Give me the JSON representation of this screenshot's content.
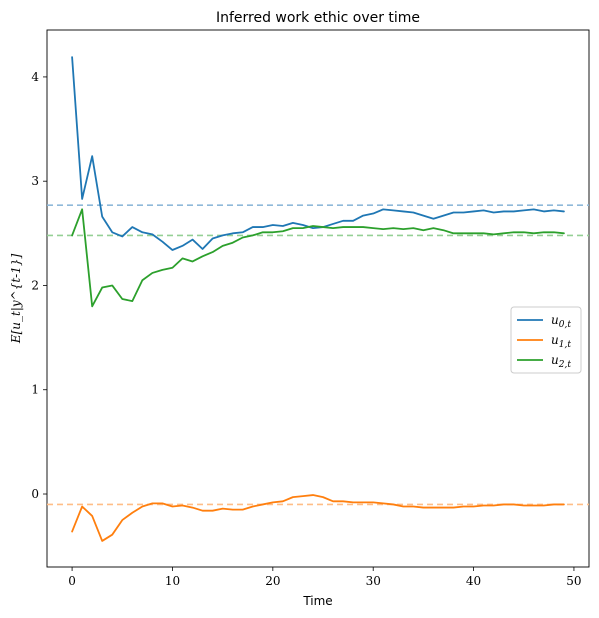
{
  "chart_data": {
    "type": "line",
    "title": "Inferred work ethic over time",
    "xlabel": "Time",
    "ylabel": "E[u_t|y^{t-1}]",
    "xlim": [
      -2.5,
      51.5
    ],
    "ylim": [
      -0.7,
      4.45
    ],
    "xticks": [
      0,
      10,
      20,
      30,
      40,
      50
    ],
    "yticks": [
      0,
      1,
      2,
      3,
      4
    ],
    "legend_position": "center-right",
    "grid": false,
    "x": [
      0,
      1,
      2,
      3,
      4,
      5,
      6,
      7,
      8,
      9,
      10,
      11,
      12,
      13,
      14,
      15,
      16,
      17,
      18,
      19,
      20,
      21,
      22,
      23,
      24,
      25,
      26,
      27,
      28,
      29,
      30,
      31,
      32,
      33,
      34,
      35,
      36,
      37,
      38,
      39,
      40,
      41,
      42,
      43,
      44,
      45,
      46,
      47,
      48,
      49
    ],
    "series": [
      {
        "name": "u_{0,t}",
        "label_main": "u",
        "label_sub": "0,t",
        "color": "#1f77b4",
        "values": [
          4.19,
          2.83,
          3.24,
          2.66,
          2.51,
          2.47,
          2.56,
          2.51,
          2.49,
          2.42,
          2.34,
          2.38,
          2.44,
          2.35,
          2.45,
          2.48,
          2.5,
          2.51,
          2.56,
          2.56,
          2.58,
          2.57,
          2.6,
          2.58,
          2.55,
          2.56,
          2.59,
          2.62,
          2.62,
          2.67,
          2.69,
          2.73,
          2.72,
          2.71,
          2.7,
          2.67,
          2.64,
          2.67,
          2.7,
          2.7,
          2.71,
          2.72,
          2.7,
          2.71,
          2.71,
          2.72,
          2.73,
          2.71,
          2.72,
          2.71
        ]
      },
      {
        "name": "u_{1,t}",
        "label_main": "u",
        "label_sub": "1,t",
        "color": "#ff7f0e",
        "values": [
          -0.36,
          -0.12,
          -0.21,
          -0.45,
          -0.39,
          -0.25,
          -0.18,
          -0.12,
          -0.09,
          -0.09,
          -0.12,
          -0.11,
          -0.13,
          -0.16,
          -0.16,
          -0.14,
          -0.15,
          -0.15,
          -0.12,
          -0.1,
          -0.08,
          -0.07,
          -0.03,
          -0.02,
          -0.01,
          -0.03,
          -0.07,
          -0.07,
          -0.08,
          -0.08,
          -0.08,
          -0.09,
          -0.1,
          -0.12,
          -0.12,
          -0.13,
          -0.13,
          -0.13,
          -0.13,
          -0.12,
          -0.12,
          -0.11,
          -0.11,
          -0.1,
          -0.1,
          -0.11,
          -0.11,
          -0.11,
          -0.1,
          -0.1
        ]
      },
      {
        "name": "u_{2,t}",
        "label_main": "u",
        "label_sub": "2,t",
        "color": "#2ca02c",
        "values": [
          2.48,
          2.73,
          1.8,
          1.98,
          2.0,
          1.87,
          1.85,
          2.05,
          2.12,
          2.15,
          2.17,
          2.26,
          2.23,
          2.28,
          2.32,
          2.38,
          2.41,
          2.46,
          2.48,
          2.51,
          2.51,
          2.52,
          2.55,
          2.55,
          2.57,
          2.56,
          2.55,
          2.56,
          2.56,
          2.56,
          2.55,
          2.54,
          2.55,
          2.54,
          2.55,
          2.53,
          2.55,
          2.53,
          2.5,
          2.5,
          2.5,
          2.5,
          2.49,
          2.5,
          2.51,
          2.51,
          2.5,
          2.51,
          2.51,
          2.5
        ]
      }
    ],
    "reference_lines": [
      {
        "y": 2.77,
        "color": "#8fb9d9"
      },
      {
        "y": -0.1,
        "color": "#ffbe86"
      },
      {
        "y": 2.48,
        "color": "#95d095"
      }
    ]
  }
}
